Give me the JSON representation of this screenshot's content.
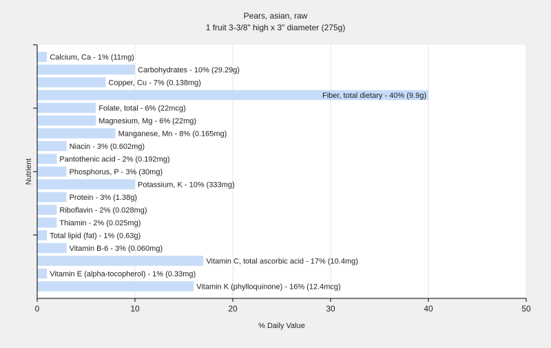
{
  "chart_data": {
    "type": "bar",
    "orientation": "horizontal",
    "title": "Pears, asian, raw",
    "subtitle": "1 fruit 3-3/8\" high x 3\" diameter (275g)",
    "xlabel": "% Daily Value",
    "ylabel": "Nutrient",
    "xlim": [
      0,
      50
    ],
    "xticks": [
      0,
      10,
      20,
      30,
      40,
      50
    ],
    "grid": true,
    "bar_color": "#c6dcf9",
    "categories": [
      "Calcium, Ca",
      "Carbohydrates",
      "Copper, Cu",
      "Fiber, total dietary",
      "Folate, total",
      "Magnesium, Mg",
      "Manganese, Mn",
      "Niacin",
      "Pantothenic acid",
      "Phosphorus, P",
      "Potassium, K",
      "Protein",
      "Riboflavin",
      "Thiamin",
      "Total lipid (fat)",
      "Vitamin B-6",
      "Vitamin C, total ascorbic acid",
      "Vitamin E (alpha-tocopherol)",
      "Vitamin K (phylloquinone)"
    ],
    "values": [
      1,
      10,
      7,
      40,
      6,
      6,
      8,
      3,
      2,
      3,
      10,
      3,
      2,
      2,
      1,
      3,
      17,
      1,
      16
    ],
    "labels": [
      "Calcium, Ca - 1% (11mg)",
      "Carbohydrates - 10% (29.29g)",
      "Copper, Cu - 7% (0.138mg)",
      "Fiber, total dietary - 40% (9.9g)",
      "Folate, total - 6% (22mcg)",
      "Magnesium, Mg - 6% (22mg)",
      "Manganese, Mn - 8% (0.165mg)",
      "Niacin - 3% (0.602mg)",
      "Pantothenic acid - 2% (0.192mg)",
      "Phosphorus, P - 3% (30mg)",
      "Potassium, K - 10% (333mg)",
      "Protein - 3% (1.38g)",
      "Riboflavin - 2% (0.028mg)",
      "Thiamin - 2% (0.025mg)",
      "Total lipid (fat) - 1% (0.63g)",
      "Vitamin B-6 - 3% (0.060mg)",
      "Vitamin C, total ascorbic acid - 17% (10.4mg)",
      "Vitamin E (alpha-tocopherol) - 1% (0.33mg)",
      "Vitamin K (phylloquinone) - 16% (12.4mcg)"
    ]
  }
}
